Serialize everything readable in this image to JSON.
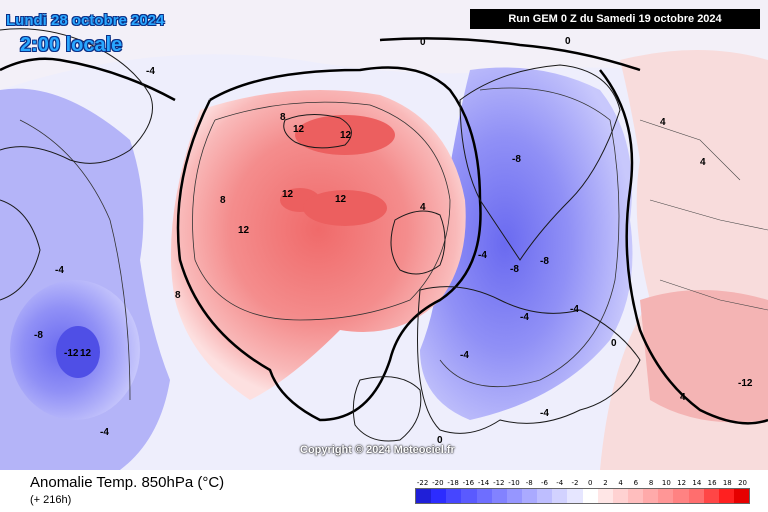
{
  "header": {
    "date": "Lundi 28 octobre 2024",
    "time": "2:00 locale",
    "run": "Run GEM 0 Z du Samedi 19 octobre 2024"
  },
  "copyright": "Copyright © 2024 Meteociel.fr",
  "legend": {
    "title": "Anomalie Temp. 850hPa (°C)",
    "subtitle": "(+ 216h)",
    "scale_labels": [
      "-22",
      "-20",
      "-18",
      "-16",
      "-14",
      "-12",
      "-10",
      "-8",
      "-6",
      "-4",
      "-2",
      "0",
      "2",
      "4",
      "6",
      "8",
      "10",
      "12",
      "14",
      "16",
      "18",
      "20"
    ],
    "scale_colors": [
      "#1f1fd8",
      "#2c2cff",
      "#4646ff",
      "#5a5aff",
      "#6e6eff",
      "#8282ff",
      "#9696ff",
      "#aaaaff",
      "#bebeff",
      "#d2d2ff",
      "#e6e6ff",
      "#ffffff",
      "#ffe6e6",
      "#ffd2d2",
      "#ffbebe",
      "#ffaaaa",
      "#ff9696",
      "#ff8282",
      "#ff6e6e",
      "#ff4646",
      "#ff2020",
      "#e60000"
    ]
  },
  "map_labels": {
    "warm_12a": "12",
    "warm_12b": "12",
    "warm_12c": "12",
    "warm_12d": "12",
    "warm_12e": "12",
    "warm_8a": "8",
    "warm_8b": "8",
    "warm_8c": "8",
    "warm_4a": "4",
    "cold_m12": "-12",
    "cold_12": "12",
    "cold_m8a": "-8",
    "cold_m8b": "-8",
    "cold_m8c": "-8",
    "cold_m8d": "-8",
    "cold_m4a": "-4",
    "cold_m4b": "-4",
    "cold_m4c": "-4",
    "cold_m4d": "-4",
    "cold_m4e": "-4",
    "cold_m4f": "-4",
    "cold_m4g": "-4",
    "cold_m4h": "-4",
    "zero_a": "0",
    "zero_b": "0",
    "zero_c": "0",
    "zero_d": "0",
    "east_4a": "4",
    "east_4b": "4",
    "east_4c": "4",
    "east_m12": "-12"
  }
}
